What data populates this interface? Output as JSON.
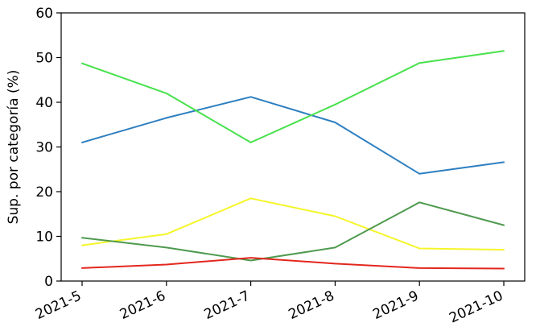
{
  "chart_data": {
    "type": "line",
    "title": "",
    "xlabel": "",
    "ylabel": "Sup. por categoría (%)",
    "categories": [
      "2021-5",
      "2021-6",
      "2021-7",
      "2021-8",
      "2021-9",
      "2021-10"
    ],
    "ylim": [
      0,
      60
    ],
    "yticks": [
      "0",
      "10",
      "20",
      "30",
      "40",
      "50",
      "60"
    ],
    "grid": false,
    "legend": "none",
    "series": [
      {
        "color": "#2e7fc0",
        "values": [
          31.0,
          36.5,
          41.2,
          35.5,
          24.0,
          26.6
        ]
      },
      {
        "color": "#48e14c",
        "values": [
          48.7,
          42.0,
          31.0,
          39.5,
          48.8,
          51.5
        ]
      },
      {
        "color": "#f5f52a",
        "values": [
          8.0,
          10.5,
          18.5,
          14.5,
          7.3,
          7.0
        ]
      },
      {
        "color": "#4f9a4f",
        "values": [
          9.7,
          7.5,
          4.6,
          7.5,
          17.6,
          12.5
        ]
      },
      {
        "color": "#e3271e",
        "values": [
          2.9,
          3.7,
          5.2,
          3.9,
          2.9,
          2.8
        ]
      }
    ]
  }
}
